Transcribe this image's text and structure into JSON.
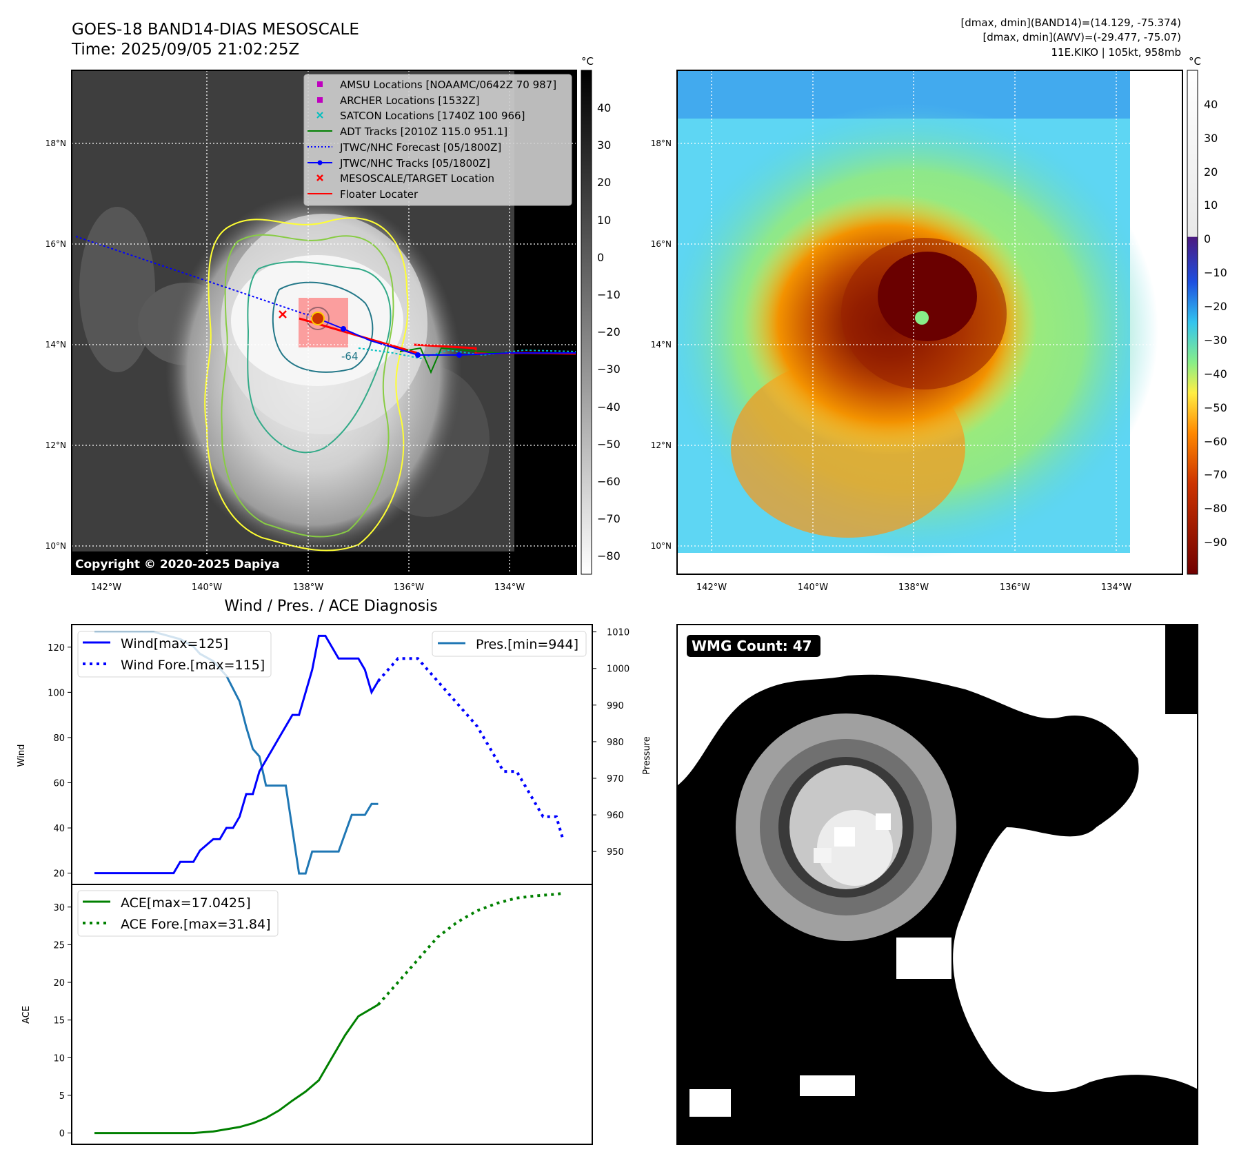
{
  "header": {
    "title_line1": "GOES-18 BAND14-DIAS MESOSCALE",
    "title_line2": "Time: 2025/09/05 21:02:25Z",
    "info_line1": "[dmax, dmin](BAND14)=(14.129, -75.374)",
    "info_line2": "[dmax, dmin](AWV)=(-29.477, -75.07)",
    "info_line3": "11E.KIKO | 105kt, 958mb"
  },
  "colors": {
    "wind": "#0000ff",
    "pressure": "#1f77b4",
    "ace": "#008000",
    "jtwc_track": "#0000ff",
    "floater": "#ff0000",
    "target": "#ff0000",
    "satcon": "#00bfbf",
    "amsu": "#bf00bf",
    "adt": "#008000",
    "contour_outer": "#ffff33",
    "contour_mid1": "#88cc44",
    "contour_mid2": "#33aa88",
    "contour_inner": "#227788"
  },
  "map_axes": {
    "x_ticks": [
      "142°W",
      "140°W",
      "138°W",
      "136°W",
      "134°W"
    ],
    "y_ticks": [
      "18°N",
      "16°N",
      "14°N",
      "12°N",
      "10°N"
    ],
    "copyright": "Copyright © 2020-2025 Dapiya",
    "contour_label": "-64"
  },
  "legend": {
    "items": [
      "AMSU Locations [NOAAMC/0642Z 70 987]",
      "ARCHER Locations [1532Z]",
      "SATCON Locations [1740Z 100 966]",
      "ADT Tracks [2010Z 115.0 951.1]",
      "JTWC/NHC Forecast [05/1800Z]",
      "JTWC/NHC Tracks [05/1800Z]",
      "MESOSCALE/TARGET Location",
      "Floater Locater"
    ]
  },
  "colorbar_gray": {
    "unit": "°C",
    "ticks": [
      "40",
      "30",
      "20",
      "10",
      "0",
      "−10",
      "−20",
      "−30",
      "−40",
      "−50",
      "−60",
      "−70",
      "−80"
    ]
  },
  "colorbar_color": {
    "unit": "°C",
    "ticks": [
      "40",
      "30",
      "20",
      "10",
      "0",
      "−10",
      "−20",
      "−30",
      "−40",
      "−50",
      "−60",
      "−70",
      "−80",
      "−90"
    ]
  },
  "wmg": {
    "label": "WMG Count: 47"
  },
  "diagnosis": {
    "title": "Wind / Pres. / ACE Diagnosis",
    "wind_ylabel": "Wind",
    "pres_ylabel": "Pressure",
    "ace_ylabel": "ACE",
    "wind_ticks": [
      "20",
      "40",
      "60",
      "80",
      "100",
      "120"
    ],
    "pres_ticks": [
      "950",
      "960",
      "970",
      "980",
      "990",
      "1000",
      "1010"
    ],
    "ace_ticks": [
      "0",
      "5",
      "10",
      "15",
      "20",
      "25",
      "30"
    ],
    "legend_wind": "Wind[max=125]",
    "legend_wind_fore": "Wind Fore.[max=115]",
    "legend_pres": "Pres.[min=944]",
    "legend_ace": "ACE[max=17.0425]",
    "legend_ace_fore": "ACE Fore.[max=31.84]"
  },
  "chart_data": [
    {
      "type": "line",
      "title": "Wind / Pres. / ACE Diagnosis",
      "ylabel": "Wind",
      "ylim": [
        15,
        130
      ],
      "xlim": [
        0,
        72
      ],
      "series": [
        {
          "name": "Wind[max=125]",
          "x": [
            0,
            12,
            13,
            15,
            16,
            18,
            19,
            20,
            21,
            22,
            23,
            24,
            25,
            27,
            28,
            30,
            31,
            33,
            34,
            35,
            37,
            38,
            40,
            41,
            42,
            43
          ],
          "values": [
            20,
            20,
            25,
            25,
            30,
            35,
            35,
            40,
            40,
            45,
            55,
            55,
            65,
            75,
            80,
            90,
            90,
            110,
            125,
            125,
            115,
            115,
            115,
            110,
            100,
            105
          ]
        },
        {
          "name": "Wind Fore.[max=115]",
          "x": [
            43,
            46,
            49,
            52,
            55,
            58,
            60,
            62,
            63,
            64,
            66,
            68,
            70,
            71
          ],
          "values": [
            105,
            115,
            115,
            105,
            95,
            85,
            75,
            65,
            65,
            65,
            55,
            45,
            45,
            35
          ]
        }
      ]
    },
    {
      "type": "line",
      "ylabel": "Pressure",
      "ylim": [
        941,
        1012
      ],
      "xlim": [
        0,
        72
      ],
      "series": [
        {
          "name": "Pres.[min=944]",
          "x": [
            0,
            3,
            6,
            9,
            11,
            13,
            14,
            15,
            16,
            18,
            19,
            20,
            22,
            23,
            24,
            25,
            26,
            27,
            28,
            29,
            30,
            31,
            32,
            33,
            34,
            35,
            36,
            37,
            38,
            39,
            40,
            41,
            42,
            43
          ],
          "values": [
            1010,
            1010,
            1010,
            1010,
            1009,
            1008,
            1007,
            1006,
            1004,
            1002,
            1000,
            998,
            991,
            984,
            978,
            976,
            968,
            968,
            968,
            968,
            956,
            944,
            944,
            950,
            950,
            950,
            950,
            950,
            955,
            960,
            960,
            960,
            963,
            963
          ]
        }
      ]
    },
    {
      "type": "line",
      "ylabel": "ACE",
      "ylim": [
        -1.5,
        33
      ],
      "xlim": [
        0,
        72
      ],
      "series": [
        {
          "name": "ACE[max=17.0425]",
          "x": [
            0,
            5,
            10,
            15,
            18,
            20,
            22,
            24,
            26,
            28,
            30,
            32,
            34,
            36,
            38,
            40,
            43
          ],
          "values": [
            0,
            0,
            0,
            0,
            0.2,
            0.5,
            0.8,
            1.3,
            2,
            3,
            4.3,
            5.5,
            7,
            10,
            13,
            15.5,
            17.04
          ]
        },
        {
          "name": "ACE Fore.[max=31.84]",
          "x": [
            43,
            46,
            49,
            52,
            55,
            58,
            61,
            64,
            67,
            70,
            71
          ],
          "values": [
            17.04,
            20,
            23,
            26,
            28,
            29.5,
            30.5,
            31.2,
            31.5,
            31.7,
            31.84
          ]
        }
      ]
    }
  ]
}
